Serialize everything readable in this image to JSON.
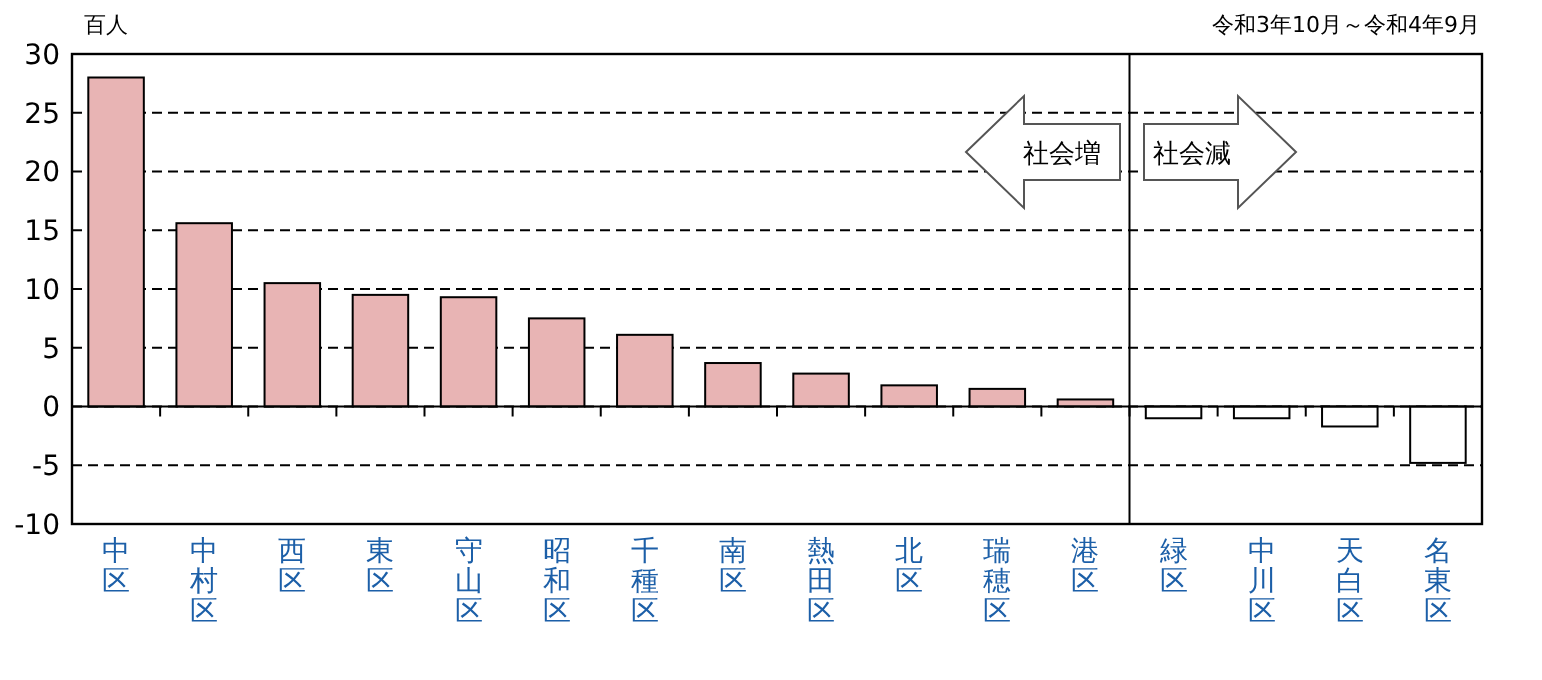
{
  "chart_data": {
    "type": "bar",
    "ylabel": "百人",
    "categories": [
      "中区",
      "中村区",
      "西区",
      "東区",
      "守山区",
      "昭和区",
      "千種区",
      "南区",
      "熱田区",
      "北区",
      "瑞穂区",
      "港区",
      "緑区",
      "中川区",
      "天白区",
      "名東区"
    ],
    "values": [
      28.0,
      15.6,
      10.5,
      9.5,
      9.3,
      7.5,
      6.1,
      3.7,
      2.8,
      1.8,
      1.5,
      0.6,
      -1.0,
      -1.0,
      -1.7,
      -4.8
    ],
    "colors": [
      "#e8b4b4",
      "#e8b4b4",
      "#e8b4b4",
      "#e8b4b4",
      "#e8b4b4",
      "#e8b4b4",
      "#e8b4b4",
      "#e8b4b4",
      "#e8b4b4",
      "#e8b4b4",
      "#e8b4b4",
      "#e8b4b4",
      "#ffffff",
      "#ffffff",
      "#ffffff",
      "#ffffff"
    ],
    "ylim": [
      -10,
      30
    ],
    "yticks": [
      -10,
      -5,
      0,
      5,
      10,
      15,
      20,
      25,
      30
    ],
    "grid": "y",
    "annotations": [
      "令和3年10月～令和4年9月",
      "社会増",
      "社会減"
    ]
  }
}
